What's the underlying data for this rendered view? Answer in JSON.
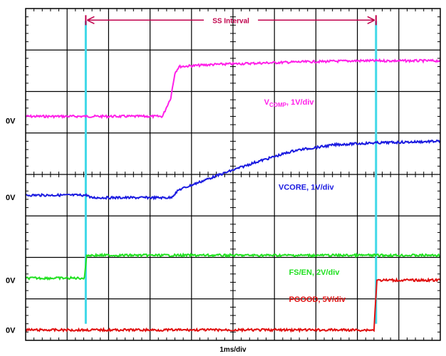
{
  "chart_data": {
    "type": "line",
    "xlabel": "1ms/div",
    "grid": true,
    "x_divisions": 10,
    "y_divisions": 8,
    "annotation": {
      "label": "SS Interval",
      "x_start_div": 1.45,
      "x_end_div": 8.45,
      "color": "#c0004c"
    },
    "markers": {
      "color": "#3fd8e8",
      "x_div": [
        1.45,
        8.45
      ]
    },
    "ground_labels": [
      {
        "text": "0V",
        "y_div": 2.7
      },
      {
        "text": "0V",
        "y_div": 4.55
      },
      {
        "text": "0V",
        "y_div": 6.55
      },
      {
        "text": "0V",
        "y_div": 7.75
      }
    ],
    "series": [
      {
        "name": "VCOMP",
        "label_main": "V",
        "label_sub": "COMP",
        "label_rest": ", 1V/div",
        "color": "#ff1fe8",
        "label_pos": {
          "x_div": 5.75,
          "y_div": 2.25
        },
        "points": [
          [
            0,
            2.6
          ],
          [
            3.3,
            2.6
          ],
          [
            3.5,
            2.15
          ],
          [
            3.6,
            1.55
          ],
          [
            3.7,
            1.4
          ],
          [
            4.5,
            1.35
          ],
          [
            5.5,
            1.32
          ],
          [
            6.5,
            1.29
          ],
          [
            8.0,
            1.26
          ],
          [
            10,
            1.26
          ]
        ]
      },
      {
        "name": "VCORE",
        "label_main": "VCORE, 1V/div",
        "color": "#1a1ae0",
        "label_pos": {
          "x_div": 6.1,
          "y_div": 4.3
        },
        "points": [
          [
            0,
            4.5
          ],
          [
            1.5,
            4.5
          ],
          [
            1.55,
            4.56
          ],
          [
            3.5,
            4.56
          ],
          [
            3.7,
            4.37
          ],
          [
            4.5,
            4.07
          ],
          [
            5.5,
            3.72
          ],
          [
            6.5,
            3.42
          ],
          [
            7.5,
            3.28
          ],
          [
            8.4,
            3.24
          ],
          [
            10,
            3.2
          ]
        ]
      },
      {
        "name": "FS/EN",
        "label_main": "FS/EN, 2V/div",
        "color": "#20e020",
        "label_pos": {
          "x_div": 6.35,
          "y_div": 6.35
        },
        "points": [
          [
            0,
            6.5
          ],
          [
            1.42,
            6.5
          ],
          [
            1.47,
            5.95
          ],
          [
            10,
            5.95
          ]
        ]
      },
      {
        "name": "PGOOD",
        "label_main": "PGOOD, 5V/div",
        "color": "#e01010",
        "label_pos": {
          "x_div": 6.35,
          "y_div": 7.0
        },
        "points": [
          [
            0,
            7.75
          ],
          [
            8.4,
            7.75
          ],
          [
            8.47,
            6.55
          ],
          [
            10,
            6.55
          ]
        ]
      }
    ]
  }
}
